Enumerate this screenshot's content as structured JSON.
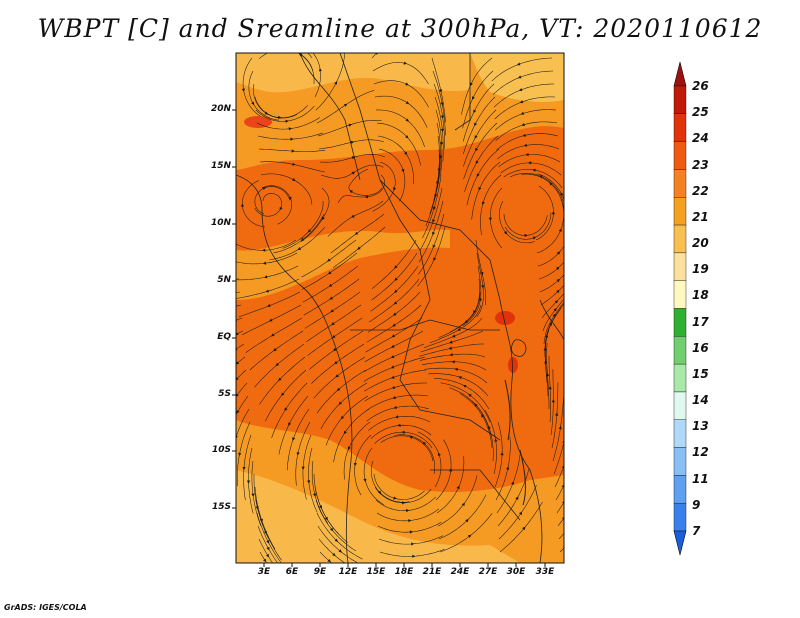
{
  "title": "WBPT [C] and Sreamline at 300hPa, VT: 2020110612",
  "footer": "GrADS: IGES/COLA",
  "lat_labels": [
    "20N",
    "15N",
    "10N",
    "5N",
    "EQ",
    "5S",
    "10S",
    "15S"
  ],
  "lon_labels": [
    "3E",
    "6E",
    "9E",
    "12E",
    "15E",
    "18E",
    "21E",
    "24E",
    "27E",
    "30E",
    "33E"
  ],
  "colorbar": {
    "labels": [
      "26",
      "25",
      "24",
      "23",
      "22",
      "21",
      "20",
      "19",
      "18",
      "17",
      "16",
      "15",
      "14",
      "13",
      "12",
      "11",
      "9",
      "7"
    ],
    "colors": [
      "#a01010",
      "#c01a0a",
      "#e0330a",
      "#f05a10",
      "#f58220",
      "#f5a020",
      "#f8c050",
      "#fbe0a0",
      "#fff8c0",
      "#30b030",
      "#70d070",
      "#a8e8a8",
      "#e0f8f0",
      "#b0d8f8",
      "#88bff5",
      "#60a0f0",
      "#3a80ea",
      "#1a5ee0"
    ]
  },
  "map_colors": {
    "dark_orange": "#f06a10",
    "orange": "#f59a22",
    "light_orange": "#f8b84a",
    "red": "#e0330a"
  }
}
